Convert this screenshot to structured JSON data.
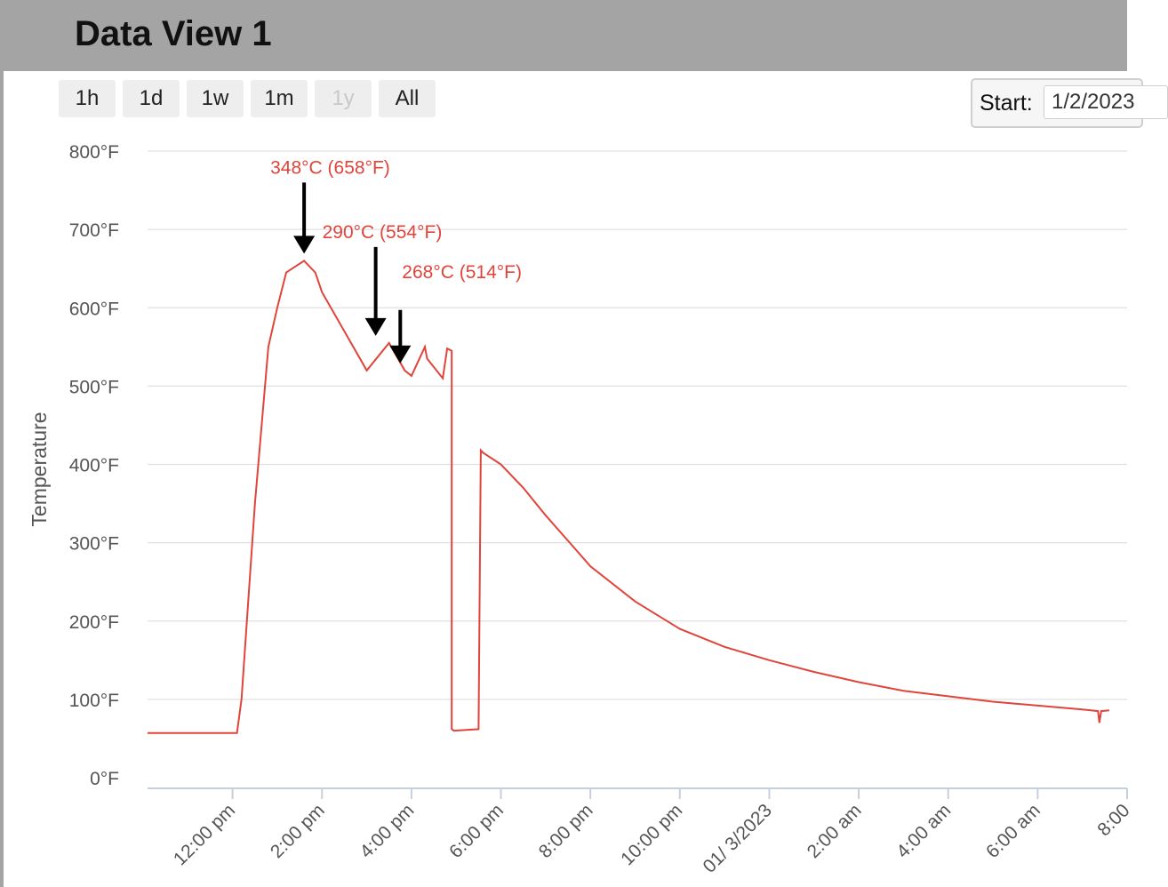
{
  "window": {
    "title": "Data View 1"
  },
  "range_buttons": [
    {
      "label": "1h",
      "enabled": true
    },
    {
      "label": "1d",
      "enabled": true
    },
    {
      "label": "1w",
      "enabled": true
    },
    {
      "label": "1m",
      "enabled": true
    },
    {
      "label": "1y",
      "enabled": false
    },
    {
      "label": "All",
      "enabled": true
    }
  ],
  "start": {
    "label": "Start:",
    "value": "1/2/2023"
  },
  "colors": {
    "line": "#e0443a",
    "grid": "#e0e0e0",
    "arrow": "#000000",
    "header": "#a4a4a4"
  },
  "chart_data": {
    "type": "line",
    "title": "",
    "ylabel": "Temperature",
    "xlabel": "",
    "ylim": [
      0,
      800
    ],
    "yticks": [
      0,
      100,
      200,
      300,
      400,
      500,
      600,
      700,
      800
    ],
    "ytick_labels": [
      "0°F",
      "100°F",
      "200°F",
      "300°F",
      "400°F",
      "500°F",
      "600°F",
      "700°F",
      "800°F"
    ],
    "xlim": [
      10.1,
      32.0
    ],
    "xticks": [
      12,
      14,
      16,
      18,
      20,
      22,
      24,
      26,
      28,
      30,
      32
    ],
    "xtick_labels": [
      "12:00 pm",
      "2:00 pm",
      "4:00 pm",
      "6:00 pm",
      "8:00 pm",
      "10:00 pm",
      "01/ 3/2023",
      "2:00 am",
      "4:00 am",
      "6:00 am",
      "8:00"
    ],
    "grid": true,
    "series": [
      {
        "x": [
          10.1,
          12.1,
          12.2,
          12.5,
          12.8,
          13.0,
          13.2,
          13.6,
          13.85,
          14.0,
          14.5,
          15.0,
          15.5,
          15.85,
          16.0,
          16.3,
          16.35,
          16.7,
          16.8,
          16.9,
          16.9,
          16.95,
          17.5,
          17.55,
          17.6,
          18.0,
          18.5,
          19.0,
          20.0,
          21.0,
          22.0,
          23.0,
          24.0,
          25.0,
          26.0,
          27.0,
          28.0,
          29.0,
          30.0,
          31.0,
          31.35,
          31.38,
          31.42,
          31.6
        ],
        "y": [
          57,
          57,
          100,
          350,
          550,
          600,
          645,
          660,
          645,
          620,
          570,
          520,
          555,
          520,
          513,
          550,
          535,
          510,
          548,
          545,
          62,
          60,
          62,
          418,
          415,
          400,
          370,
          335,
          270,
          225,
          190,
          167,
          150,
          135,
          122,
          111,
          104,
          97,
          92,
          87,
          85,
          70,
          85,
          86
        ]
      }
    ],
    "annotations": [
      {
        "text": "348°C (658°F)",
        "x": 13.6,
        "y": 660
      },
      {
        "text": "290°C (554°F)",
        "x": 15.2,
        "y": 555
      },
      {
        "text": "268°C (514°F)",
        "x": 15.75,
        "y": 520
      }
    ]
  }
}
